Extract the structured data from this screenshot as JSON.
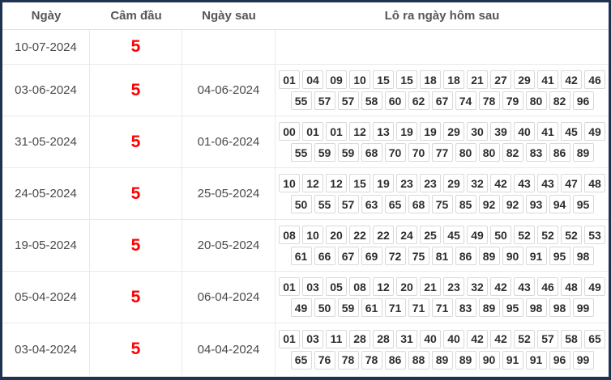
{
  "table": {
    "headers": [
      "Ngày",
      "Câm đầu",
      "Ngày sau",
      "Lô ra ngày hôm sau"
    ],
    "accent_colors": {
      "cam_dau_text": "#ff0000",
      "outer_border": "#1d3350",
      "grid_line": "#e9e9e9"
    },
    "rows": [
      {
        "date": "10-07-2024",
        "cam_dau": "5",
        "next_date": "",
        "line1": [],
        "line2": []
      },
      {
        "date": "03-06-2024",
        "cam_dau": "5",
        "next_date": "04-06-2024",
        "line1": [
          "01",
          "04",
          "09",
          "10",
          "15",
          "15",
          "18",
          "18",
          "21",
          "27",
          "29",
          "41",
          "42",
          "46"
        ],
        "line2": [
          "55",
          "57",
          "57",
          "58",
          "60",
          "62",
          "67",
          "74",
          "78",
          "79",
          "80",
          "82",
          "96"
        ]
      },
      {
        "date": "31-05-2024",
        "cam_dau": "5",
        "next_date": "01-06-2024",
        "line1": [
          "00",
          "01",
          "01",
          "12",
          "13",
          "19",
          "19",
          "29",
          "30",
          "39",
          "40",
          "41",
          "45",
          "49"
        ],
        "line2": [
          "55",
          "59",
          "59",
          "68",
          "70",
          "70",
          "77",
          "80",
          "80",
          "82",
          "83",
          "86",
          "89"
        ]
      },
      {
        "date": "24-05-2024",
        "cam_dau": "5",
        "next_date": "25-05-2024",
        "line1": [
          "10",
          "12",
          "12",
          "15",
          "19",
          "23",
          "23",
          "29",
          "32",
          "42",
          "43",
          "43",
          "47",
          "48"
        ],
        "line2": [
          "50",
          "55",
          "57",
          "63",
          "65",
          "68",
          "75",
          "85",
          "92",
          "92",
          "93",
          "94",
          "95"
        ]
      },
      {
        "date": "19-05-2024",
        "cam_dau": "5",
        "next_date": "20-05-2024",
        "line1": [
          "08",
          "10",
          "20",
          "22",
          "22",
          "24",
          "25",
          "45",
          "49",
          "50",
          "52",
          "52",
          "52",
          "53"
        ],
        "line2": [
          "61",
          "66",
          "67",
          "69",
          "72",
          "75",
          "81",
          "86",
          "89",
          "90",
          "91",
          "95",
          "98"
        ]
      },
      {
        "date": "05-04-2024",
        "cam_dau": "5",
        "next_date": "06-04-2024",
        "line1": [
          "01",
          "03",
          "05",
          "08",
          "12",
          "20",
          "21",
          "23",
          "32",
          "42",
          "43",
          "46",
          "48",
          "49"
        ],
        "line2": [
          "49",
          "50",
          "59",
          "61",
          "71",
          "71",
          "71",
          "83",
          "89",
          "95",
          "98",
          "98",
          "99"
        ]
      },
      {
        "date": "03-04-2024",
        "cam_dau": "5",
        "next_date": "04-04-2024",
        "line1": [
          "01",
          "03",
          "11",
          "28",
          "28",
          "31",
          "40",
          "40",
          "42",
          "42",
          "52",
          "57",
          "58",
          "65"
        ],
        "line2": [
          "65",
          "76",
          "78",
          "78",
          "86",
          "88",
          "89",
          "89",
          "90",
          "91",
          "91",
          "96",
          "99"
        ]
      }
    ]
  }
}
